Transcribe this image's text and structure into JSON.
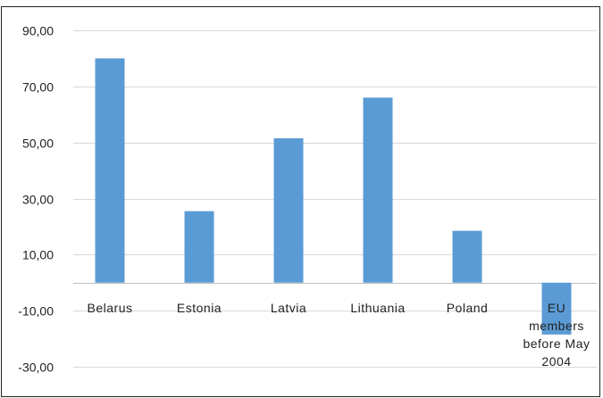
{
  "chart_data": {
    "type": "bar",
    "categories": [
      "Belarus",
      "Estonia",
      "Latvia",
      "Lithuania",
      "Poland",
      "EU members before May 2004"
    ],
    "category_lines": [
      [
        "Belarus"
      ],
      [
        "Estonia"
      ],
      [
        "Latvia"
      ],
      [
        "Lithuania"
      ],
      [
        "Poland"
      ],
      [
        "EU",
        "members",
        "before May",
        "2004"
      ]
    ],
    "values": [
      80.0,
      25.5,
      51.5,
      66.0,
      18.5,
      -18.5
    ],
    "ylim": [
      -30,
      90
    ],
    "yticks": [
      -30,
      -10,
      10,
      30,
      50,
      70,
      90
    ],
    "ytick_labels": [
      "-30,00",
      "-10,00",
      "10,00",
      "30,00",
      "50,00",
      "70,00",
      "90,00"
    ],
    "title": "",
    "xlabel": "",
    "ylabel": "",
    "grid": true,
    "legend": "none",
    "colors": {
      "bar": "#5b9bd5",
      "grid": "#d9d9d9",
      "text": "#222222"
    }
  }
}
